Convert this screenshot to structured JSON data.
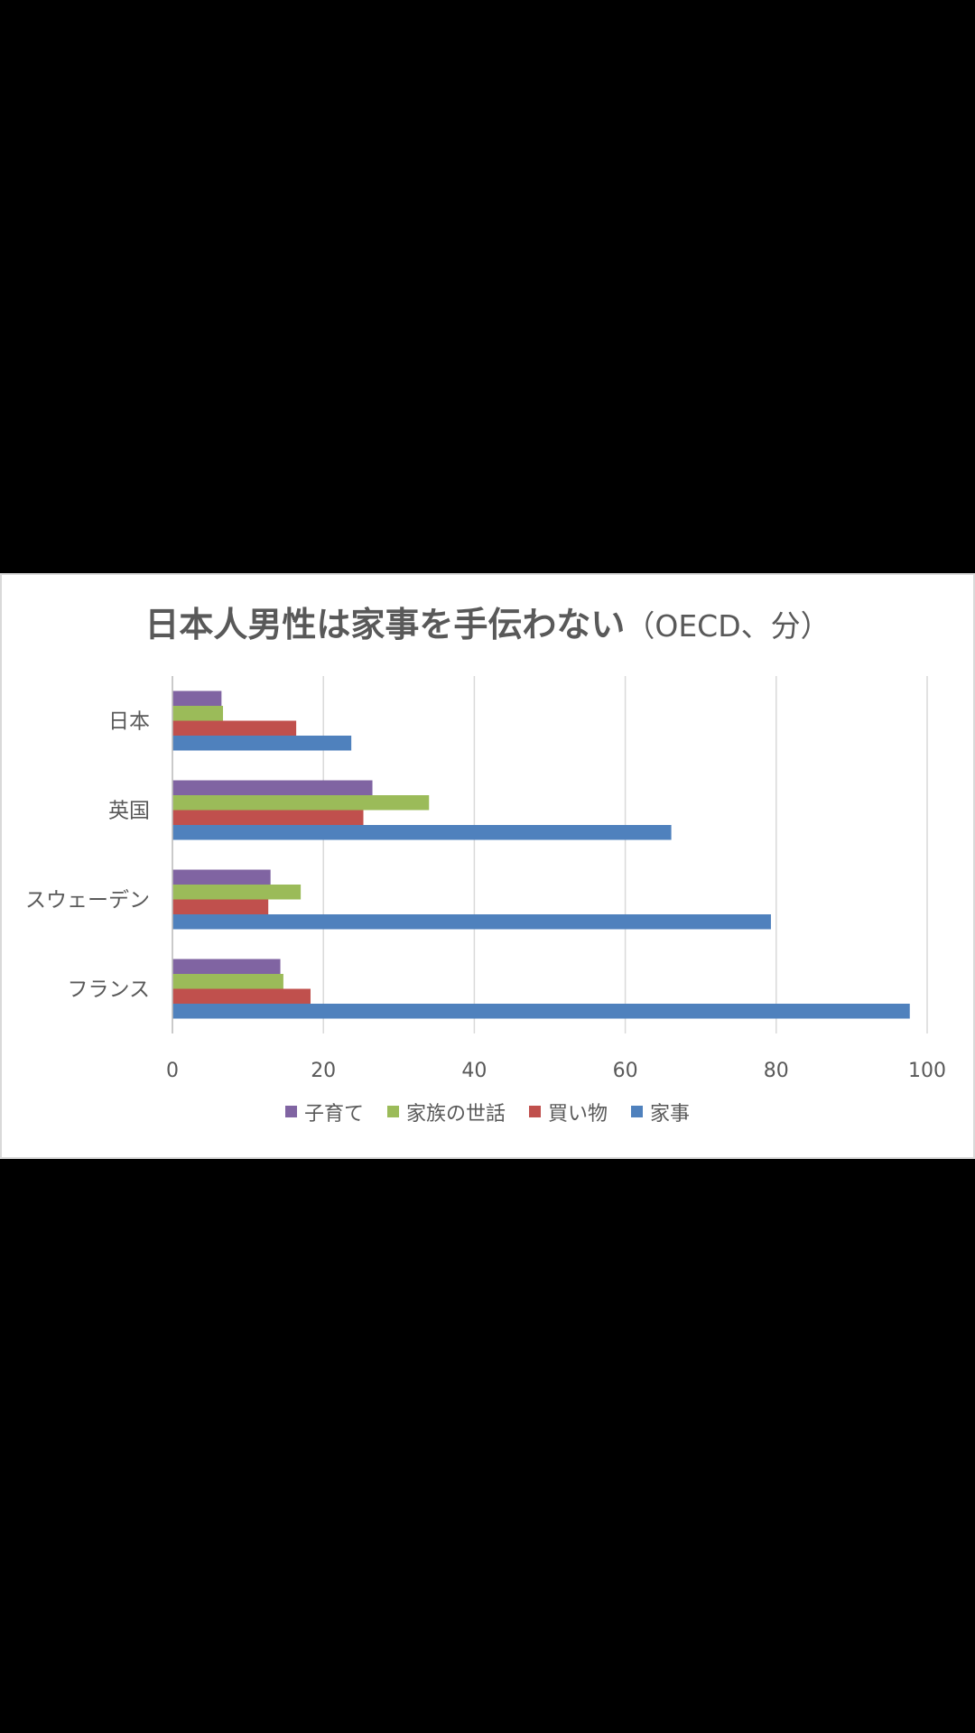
{
  "chart_data": {
    "type": "bar",
    "orientation": "horizontal",
    "title": "日本人男性は家事を手伝わない",
    "subtitle": "（OECD、分）",
    "categories": [
      "日本",
      "英国",
      "スウェーデン",
      "フランス"
    ],
    "series": [
      {
        "name": "子育て",
        "color": "#8064a2",
        "values": [
          6.5,
          26.5,
          13,
          14.3
        ]
      },
      {
        "name": "家族の世話",
        "color": "#9bbb59",
        "values": [
          6.7,
          34,
          17,
          14.7
        ]
      },
      {
        "name": "買い物",
        "color": "#c0504d",
        "values": [
          16.4,
          25.3,
          12.7,
          18.3
        ]
      },
      {
        "name": "家事",
        "color": "#4f81bd",
        "values": [
          23.7,
          66.1,
          79.3,
          97.7
        ]
      }
    ],
    "xlim": [
      0,
      100
    ],
    "xticks": [
      0,
      20,
      40,
      60,
      80,
      100
    ],
    "xtick_labels": [
      "0",
      "20",
      "40",
      "60",
      "80",
      "100"
    ],
    "grid": true,
    "legend_position": "bottom"
  }
}
